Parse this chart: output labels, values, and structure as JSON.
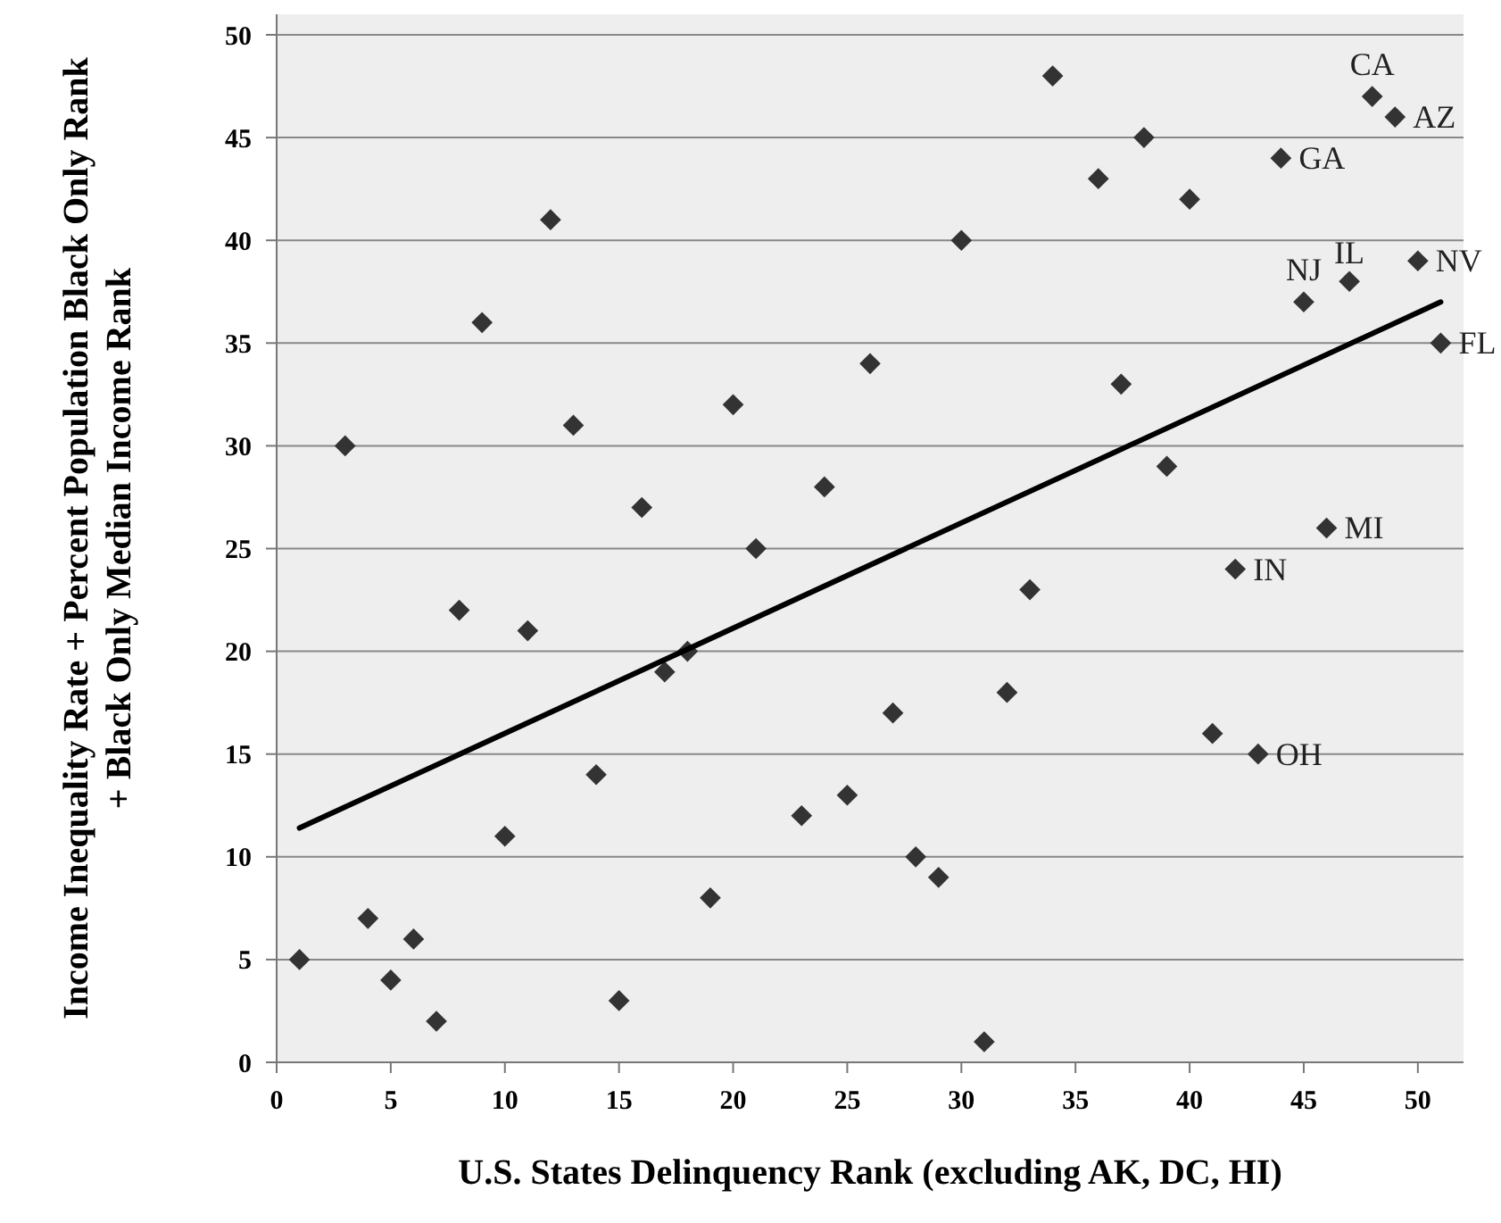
{
  "chart_data": {
    "type": "scatter",
    "xlabel": "U.S. States Delinquency Rank (excluding AK, DC, HI)",
    "ylabel": "Income Inequality Rate + Percent Population Black Only Rank + Black Only Median Income Rank",
    "xlim": [
      0,
      52
    ],
    "ylim": [
      0,
      51
    ],
    "xticks": [
      0,
      5,
      10,
      15,
      20,
      25,
      30,
      35,
      40,
      45,
      50
    ],
    "yticks": [
      0,
      5,
      10,
      15,
      20,
      25,
      30,
      35,
      40,
      45,
      50
    ],
    "grid": "y",
    "series": [
      {
        "color": "#333333",
        "marker": "diamond",
        "x": [
          1,
          3,
          4,
          5,
          6,
          7,
          8,
          9,
          10,
          11,
          12,
          13,
          14,
          15,
          16,
          17,
          18,
          19,
          20,
          21,
          23,
          24,
          25,
          26,
          27,
          28,
          29,
          30,
          31,
          32,
          33,
          34,
          36,
          37,
          38,
          39,
          40,
          41,
          42,
          43,
          44,
          45,
          46,
          47,
          48,
          49,
          50,
          51
        ],
        "values": [
          5,
          30,
          7,
          4,
          6,
          2,
          22,
          36,
          11,
          21,
          41,
          31,
          14,
          3,
          27,
          19,
          20,
          8,
          32,
          25,
          12,
          28,
          13,
          34,
          17,
          10,
          9,
          40,
          1,
          18,
          23,
          48,
          43,
          33,
          45,
          29,
          42,
          16,
          24,
          15,
          44,
          37,
          26,
          38,
          47,
          46,
          39,
          35
        ]
      },
      {
        "type": "line",
        "color": "#000000",
        "x": [
          1,
          51
        ],
        "values": [
          11.4,
          37
        ],
        "marker": "none",
        "line_style": "solid"
      }
    ],
    "annotations": [
      {
        "text": "CA",
        "x": 48,
        "y": 47
      },
      {
        "text": "AZ",
        "x": 49,
        "y": 46
      },
      {
        "text": "GA",
        "x": 44,
        "y": 44
      },
      {
        "text": "IL",
        "x": 47,
        "y": 38
      },
      {
        "text": "NV",
        "x": 50,
        "y": 39
      },
      {
        "text": "NJ",
        "x": 45,
        "y": 37
      },
      {
        "text": "FL",
        "x": 51,
        "y": 35
      },
      {
        "text": "MI",
        "x": 46,
        "y": 26
      },
      {
        "text": "IN",
        "x": 42,
        "y": 24
      },
      {
        "text": "OH",
        "x": 43,
        "y": 15
      }
    ]
  }
}
